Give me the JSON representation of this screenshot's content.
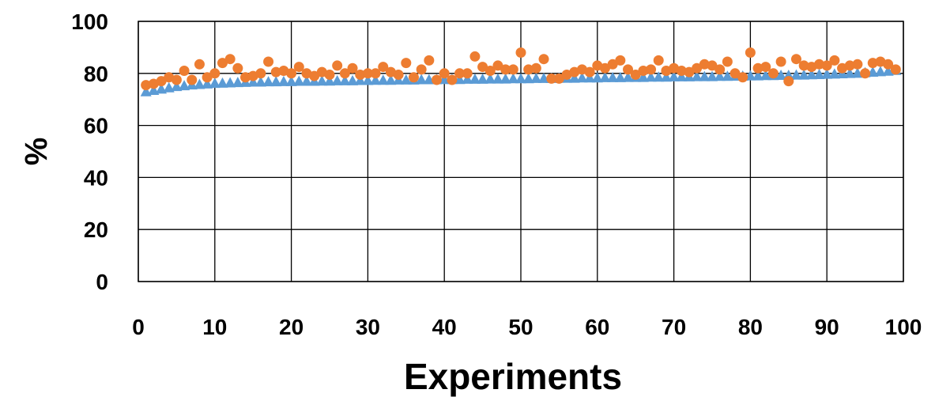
{
  "chart_data": {
    "type": "scatter",
    "title": "",
    "xlabel": "Experiments",
    "ylabel": "%",
    "xlim": [
      0,
      100
    ],
    "ylim": [
      0,
      100
    ],
    "x_ticks": [
      0,
      10,
      20,
      30,
      40,
      50,
      60,
      70,
      80,
      90,
      100
    ],
    "y_ticks": [
      0,
      20,
      40,
      60,
      80,
      100
    ],
    "grid": true,
    "legend": "none",
    "x": [
      1,
      2,
      3,
      4,
      5,
      6,
      7,
      8,
      9,
      10,
      11,
      12,
      13,
      14,
      15,
      16,
      17,
      18,
      19,
      20,
      21,
      22,
      23,
      24,
      25,
      26,
      27,
      28,
      29,
      30,
      31,
      32,
      33,
      34,
      35,
      36,
      37,
      38,
      39,
      40,
      41,
      42,
      43,
      44,
      45,
      46,
      47,
      48,
      49,
      50,
      51,
      52,
      53,
      54,
      55,
      56,
      57,
      58,
      59,
      60,
      61,
      62,
      63,
      64,
      65,
      66,
      67,
      68,
      69,
      70,
      71,
      72,
      73,
      74,
      75,
      76,
      77,
      78,
      79,
      80,
      81,
      82,
      83,
      84,
      85,
      86,
      87,
      88,
      89,
      90,
      91,
      92,
      93,
      94,
      95,
      96,
      97,
      98,
      99
    ],
    "series": [
      {
        "color": "#5B9BD5",
        "marker": "triangle",
        "values": [
          72.8,
          73.3,
          73.8,
          74.3,
          74.8,
          75.1,
          75.4,
          75.6,
          75.8,
          76.0,
          76.1,
          76.2,
          76.3,
          76.4,
          76.5,
          76.5,
          76.6,
          76.6,
          76.7,
          76.7,
          76.8,
          76.8,
          76.8,
          76.9,
          76.9,
          77.0,
          77.0,
          77.0,
          77.1,
          77.1,
          77.2,
          77.2,
          77.2,
          77.3,
          77.3,
          77.3,
          77.4,
          77.4,
          77.4,
          77.5,
          77.5,
          77.5,
          77.6,
          77.6,
          77.6,
          77.7,
          77.7,
          77.7,
          77.8,
          77.8,
          77.8,
          77.9,
          77.9,
          77.9,
          78.0,
          78.0,
          78.0,
          78.1,
          78.1,
          78.1,
          78.2,
          78.2,
          78.2,
          78.3,
          78.3,
          78.3,
          78.4,
          78.4,
          78.4,
          78.5,
          78.5,
          78.5,
          78.6,
          78.6,
          78.6,
          78.7,
          78.7,
          78.8,
          78.8,
          78.9,
          78.9,
          79.0,
          79.0,
          79.1,
          79.1,
          79.2,
          79.2,
          79.3,
          79.4,
          79.5,
          79.6,
          79.7,
          79.8,
          79.9,
          80.1,
          80.3,
          80.5,
          80.7,
          81.0
        ]
      },
      {
        "color": "#ED7D31",
        "marker": "circle",
        "values": [
          75.5,
          76.0,
          77.0,
          78.5,
          77.5,
          81.0,
          77.5,
          83.5,
          78.5,
          80.0,
          84.0,
          85.5,
          82.0,
          78.5,
          79.0,
          80.0,
          84.5,
          80.5,
          81.0,
          80.0,
          82.5,
          80.0,
          79.0,
          80.5,
          79.5,
          83.0,
          80.0,
          82.0,
          79.5,
          80.0,
          80.0,
          82.5,
          80.5,
          79.5,
          84.0,
          78.5,
          81.5,
          85.0,
          77.5,
          80.0,
          77.5,
          80.0,
          80.0,
          86.5,
          82.5,
          81.0,
          83.0,
          81.5,
          81.5,
          88.0,
          81.5,
          82.0,
          85.5,
          78.0,
          78.0,
          79.5,
          80.5,
          81.5,
          80.5,
          83.0,
          82.0,
          83.5,
          85.0,
          81.5,
          79.5,
          81.0,
          81.5,
          85.0,
          81.0,
          82.0,
          81.0,
          80.5,
          82.0,
          83.5,
          83.0,
          81.5,
          84.5,
          80.0,
          78.5,
          88.0,
          82.0,
          82.5,
          80.0,
          84.5,
          77.0,
          85.5,
          83.0,
          82.5,
          83.5,
          83.0,
          85.0,
          82.0,
          83.0,
          83.5,
          80.0,
          84.0,
          84.5,
          83.5,
          81.5
        ]
      }
    ]
  }
}
